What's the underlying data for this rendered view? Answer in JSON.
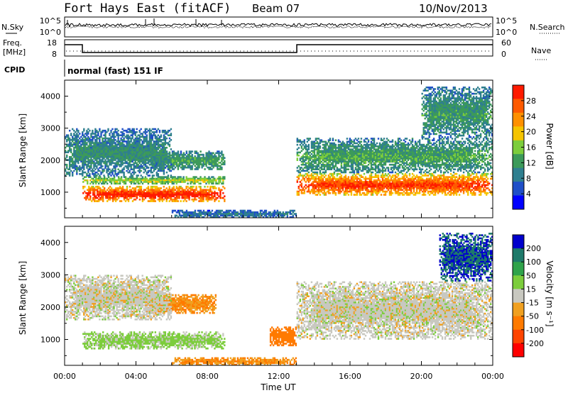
{
  "header": {
    "station": "Fort Hays East (fitACF)",
    "beam": "Beam 07",
    "date": "10/Nov/2013"
  },
  "top_panels": {
    "nsky_label": "N.Sky",
    "nsky_ticks": [
      "10^5",
      "10^0"
    ],
    "nsearch_label": "N.Search",
    "nsearch_ticks": [
      "10^5",
      "10^0"
    ],
    "freq_label": "Freq.",
    "freq_unit": "[MHz]",
    "freq_ticks": [
      "18",
      "8"
    ],
    "nave_label": "Nave",
    "nave_ticks": [
      "60",
      "0"
    ],
    "cpid_label": "CPID",
    "cpid_value": "normal (fast) 151 IF"
  },
  "colors": {
    "power_scale": [
      "#0000ff",
      "#1f4fc8",
      "#2f7f8f",
      "#3c9a5a",
      "#7ccd3c",
      "#f5c400",
      "#ff9000",
      "#ff5a00",
      "#ff1a00"
    ],
    "velocity_scale": [
      "#ff0000",
      "#ff4400",
      "#ff7a00",
      "#f0a020",
      "#c8c8c0",
      "#7ccd3c",
      "#2fa34a",
      "#1e7a6a",
      "#0000cc"
    ]
  },
  "chart_data": [
    {
      "type": "heatmap",
      "name": "power",
      "ylabel": "Slant Range [km]",
      "yticks": [
        1000,
        2000,
        3000,
        4000
      ],
      "ylim": [
        200,
        4500
      ],
      "xlim": [
        0,
        24
      ],
      "colorbar_label": "Power [dB]",
      "colorbar_ticks": [
        "28",
        "24",
        "20",
        "16",
        "12",
        "8",
        "4"
      ],
      "regions": [
        {
          "t": [
            1.0,
            9.0
          ],
          "r": [
            700,
            1200
          ],
          "level": 26
        },
        {
          "t": [
            1.0,
            9.0
          ],
          "r": [
            1250,
            1500
          ],
          "level": 14
        },
        {
          "t": [
            4.5,
            9.0
          ],
          "r": [
            1700,
            2300
          ],
          "level": 10
        },
        {
          "t": [
            0.0,
            6.0
          ],
          "r": [
            1500,
            3000
          ],
          "level": 8
        },
        {
          "t": [
            13.0,
            24.0
          ],
          "r": [
            900,
            1600
          ],
          "level": 24
        },
        {
          "t": [
            13.0,
            24.0
          ],
          "r": [
            1600,
            2700
          ],
          "level": 10
        },
        {
          "t": [
            20.0,
            24.0
          ],
          "r": [
            2700,
            4300
          ],
          "level": 9
        },
        {
          "t": [
            6.0,
            13.0
          ],
          "r": [
            200,
            450
          ],
          "level": 6
        }
      ]
    },
    {
      "type": "heatmap",
      "name": "velocity",
      "ylabel": "Slant Range [km]",
      "yticks": [
        1000,
        2000,
        3000,
        4000
      ],
      "ylim": [
        200,
        4500
      ],
      "xlim": [
        0,
        24
      ],
      "xlabel": "Time UT",
      "xticks": [
        "00:00",
        "04:00",
        "08:00",
        "12:00",
        "16:00",
        "20:00",
        "00:00"
      ],
      "colorbar_label": "Velocity [m s⁻¹]",
      "colorbar_ticks": [
        "200",
        "100",
        "50",
        "15",
        "-15",
        "-50",
        "-100",
        "-200"
      ],
      "regions": [
        {
          "t": [
            1.0,
            9.0
          ],
          "r": [
            700,
            1250
          ],
          "value": 25
        },
        {
          "t": [
            4.5,
            8.5
          ],
          "r": [
            1800,
            2400
          ],
          "value": -50
        },
        {
          "t": [
            0.0,
            6.0
          ],
          "r": [
            1600,
            3000
          ],
          "value": 0
        },
        {
          "t": [
            13.0,
            24.0
          ],
          "r": [
            1000,
            2800
          ],
          "value": 0
        },
        {
          "t": [
            21.0,
            24.0
          ],
          "r": [
            2800,
            4300
          ],
          "value": 200
        },
        {
          "t": [
            6.0,
            13.0
          ],
          "r": [
            200,
            450
          ],
          "value": -50
        },
        {
          "t": [
            11.5,
            13.0
          ],
          "r": [
            800,
            1400
          ],
          "value": -80
        }
      ]
    }
  ]
}
